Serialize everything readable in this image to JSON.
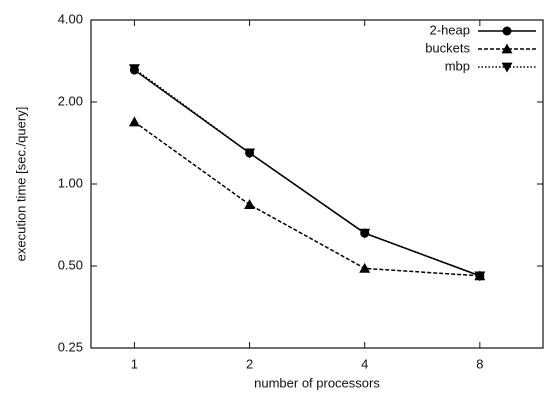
{
  "chart_data": {
    "type": "line",
    "xlabel": "number of processors",
    "ylabel": "execution time [sec./query]",
    "x": [
      1,
      2,
      4,
      8
    ],
    "xscale": "log",
    "yscale": "log",
    "xlim": [
      0.77,
      11.7
    ],
    "ylim": [
      0.25,
      4
    ],
    "xticks": [
      1,
      2,
      4,
      8
    ],
    "yticks": [
      {
        "value": 0.25,
        "label": "0.25"
      },
      {
        "value": 0.5,
        "label": "0.50"
      },
      {
        "value": 1,
        "label": "1.00"
      },
      {
        "value": 2,
        "label": "2.00"
      },
      {
        "value": 4,
        "label": "4.00"
      }
    ],
    "legend": "upper right",
    "series": [
      {
        "name": "2-heap",
        "color": "#000000",
        "marker": "circle",
        "dash": "solid",
        "values": [
          2.62,
          1.3,
          0.66,
          0.46
        ]
      },
      {
        "name": "buckets",
        "color": "#000000",
        "marker": "triangle-up",
        "dash": "dashed",
        "values": [
          1.69,
          0.84,
          0.49,
          0.46
        ]
      },
      {
        "name": "mbp",
        "color": "#000000",
        "marker": "triangle-down",
        "dash": "dotted",
        "values": [
          2.65,
          1.3,
          0.66,
          0.46
        ]
      }
    ]
  }
}
